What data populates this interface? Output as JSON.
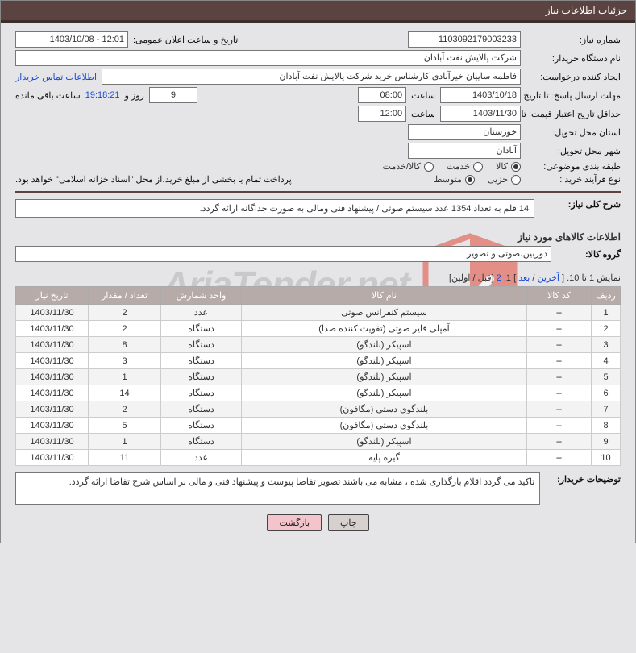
{
  "header_title": "جزئیات اطلاعات نیاز",
  "fields": {
    "need_no_label": "شماره نیاز:",
    "need_no": "1103092179003233",
    "announce_label": "تاریخ و ساعت اعلان عمومی:",
    "announce": "12:01 - 1403/10/08",
    "buyer_org_label": "نام دستگاه خریدار:",
    "buyer_org": "شرکت پالایش نفت آبادان",
    "requester_label": "ایجاد کننده درخواست:",
    "requester": "فاطمه ساپیان خیرآبادی کارشناس خرید شرکت پالایش نفت آبادان",
    "contact_link": "اطلاعات تماس خریدار",
    "deadline_label": "مهلت ارسال پاسخ: تا تاریخ:",
    "deadline_date": "1403/10/18",
    "time_word": "ساعت",
    "deadline_time": "08:00",
    "days": "9",
    "days_and": "روز و",
    "time_left": "19:18:21",
    "remaining": "ساعت باقی مانده",
    "validity_label": "حداقل تاریخ اعتبار قیمت: تا تاریخ:",
    "validity_date": "1403/11/30",
    "validity_time": "12:00",
    "province_label": "استان محل تحویل:",
    "province": "خوزستان",
    "city_label": "شهر محل تحویل:",
    "city": "آبادان",
    "category_label": "طبقه بندی موضوعی:",
    "cat_options": [
      "کالا",
      "خدمت",
      "کالا/خدمت"
    ],
    "cat_selected": 0,
    "purchase_proc_label": "نوع فرآیند خرید :",
    "proc_options": [
      "جزیی",
      "متوسط"
    ],
    "proc_selected": 1,
    "proc_note": "پرداخت تمام یا بخشی از مبلغ خرید،از محل \"اسناد خزانه اسلامی\" خواهد بود.",
    "overall_desc_label": "شرح کلی نیاز:",
    "overall_desc": "14 قلم به تعداد 1354 عدد سیستم صوتی / پیشنهاد فنی ومالی به صورت جداگانه ارائه گردد.",
    "goods_section_title": "اطلاعات کالاهای مورد نیاز",
    "group_label": "گروه کالا:",
    "group_value": "دوربین،صوتی و تصویر"
  },
  "paging": {
    "prefix": "نمایش 1 تا 10. [",
    "last": "آخرین",
    "sep1": " / ",
    "next": "بعد",
    "mid": "] 1, ",
    "p2": "2",
    "suffix": " [قبل / اولین]"
  },
  "table": {
    "headers": [
      "ردیف",
      "کد کالا",
      "نام کالا",
      "واحد شمارش",
      "تعداد / مقدار",
      "تاریخ نیاز"
    ],
    "rows": [
      [
        "1",
        "--",
        "سیستم کنفرانس صوتی",
        "عدد",
        "2",
        "1403/11/30"
      ],
      [
        "2",
        "--",
        "آمپلی فایر صوتی (تقویت کننده صدا)",
        "دستگاه",
        "2",
        "1403/11/30"
      ],
      [
        "3",
        "--",
        "اسپیکر (بلندگو)",
        "دستگاه",
        "8",
        "1403/11/30"
      ],
      [
        "4",
        "--",
        "اسپیکر (بلندگو)",
        "دستگاه",
        "3",
        "1403/11/30"
      ],
      [
        "5",
        "--",
        "اسپیکر (بلندگو)",
        "دستگاه",
        "1",
        "1403/11/30"
      ],
      [
        "6",
        "--",
        "اسپیکر (بلندگو)",
        "دستگاه",
        "14",
        "1403/11/30"
      ],
      [
        "7",
        "--",
        "بلندگوی دستی (مگافون)",
        "دستگاه",
        "2",
        "1403/11/30"
      ],
      [
        "8",
        "--",
        "بلندگوی دستی (مگافون)",
        "دستگاه",
        "5",
        "1403/11/30"
      ],
      [
        "9",
        "--",
        "اسپیکر (بلندگو)",
        "دستگاه",
        "1",
        "1403/11/30"
      ],
      [
        "10",
        "--",
        "گیره پایه",
        "عدد",
        "11",
        "1403/11/30"
      ]
    ]
  },
  "buyer_notes_label": "توضیحات خریدار:",
  "buyer_notes": "تاکید می گردد اقلام بارگذاری شده ، مشابه می باشند تصویر تقاضا پیوست و پیشنهاد فنی و مالی بر اساس شرح تقاضا ارائه گردد.",
  "buttons": {
    "print": "چاپ",
    "back": "بازگشت"
  },
  "colors": {
    "panel_header_bg": "#5a4340",
    "panel_header_border": "#3d2e2b",
    "body_bg": "#e5e5e7",
    "th_bg": "#b6aba8",
    "link": "#1a4bd6",
    "btn_gray": "#d6d1cf",
    "btn_pink": "#f4c4cc",
    "watermark_red": "#e24a3b",
    "watermark_gray": "#bcbcbc"
  },
  "watermark_text": "AriaTender.net"
}
